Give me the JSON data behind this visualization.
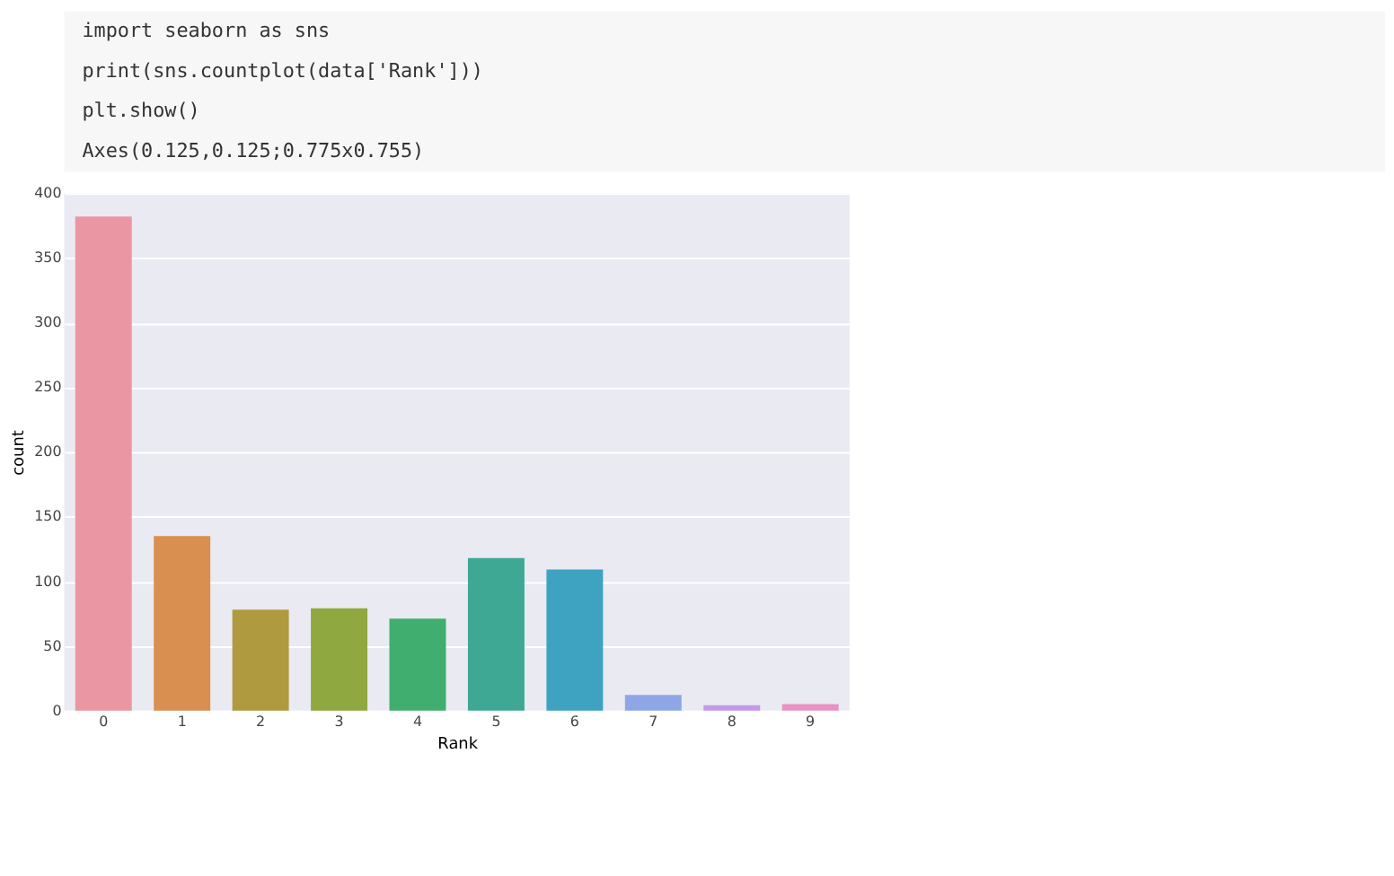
{
  "chart_data": {
    "type": "bar",
    "annotations": [
      "import seaborn as sns",
      "print(sns.countplot(data['Rank']))",
      "plt.show()",
      "Axes(0.125,0.125;0.775x0.755)"
    ],
    "categories": [
      "0",
      "1",
      "2",
      "3",
      "4",
      "5",
      "6",
      "7",
      "8",
      "9"
    ],
    "values": [
      382,
      135,
      78,
      79,
      71,
      118,
      109,
      12,
      4,
      5
    ],
    "colors": [
      "#ea96a3",
      "#d98f4f",
      "#b09a3f",
      "#8fa83f",
      "#3fae6e",
      "#3fa895",
      "#3ea3c0",
      "#8fa6e6",
      "#c49ae6",
      "#e893c3"
    ],
    "xlabel": "Rank",
    "ylabel": "count",
    "ylim": [
      0,
      400
    ],
    "yticks": [
      0,
      50,
      100,
      150,
      200,
      250,
      300,
      350,
      400
    ],
    "grid": "y"
  }
}
